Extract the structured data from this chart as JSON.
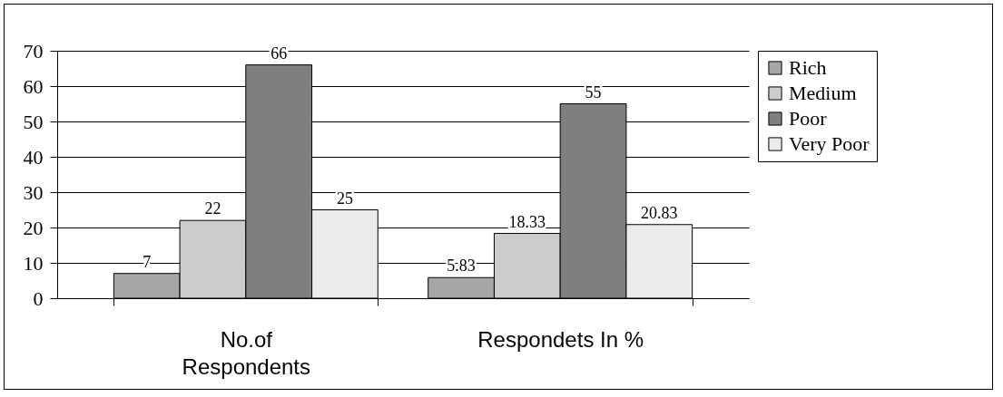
{
  "chart_data": {
    "type": "bar",
    "categories": [
      "No.of Respondents",
      "Respondets In %"
    ],
    "series": [
      {
        "name": "Rich",
        "color": "#a6a6a6",
        "values": [
          7,
          5.83
        ]
      },
      {
        "name": "Medium",
        "color": "#cccccc",
        "values": [
          22,
          18.33
        ]
      },
      {
        "name": "Poor",
        "color": "#7f7f7f",
        "values": [
          66,
          55
        ]
      },
      {
        "name": "Very Poor",
        "color": "#ebebeb",
        "values": [
          25,
          20.83
        ]
      }
    ],
    "ylim": [
      0,
      70
    ],
    "yticks": [
      0,
      10,
      20,
      30,
      40,
      50,
      60,
      70
    ],
    "grid": "y",
    "legend": "right",
    "data_labels": true
  }
}
